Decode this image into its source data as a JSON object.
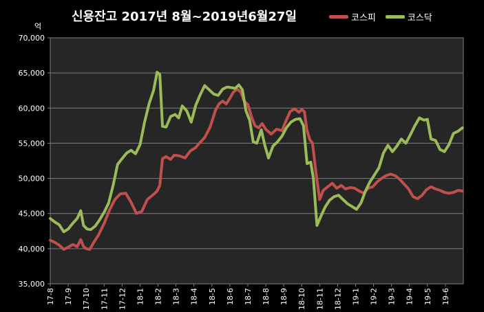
{
  "chart_data": {
    "type": "line",
    "title": "신용잔고 2017년 8월~2019년6월27일",
    "unit_label": "억",
    "ylim": [
      35000,
      70000
    ],
    "y_ticks": [
      35000,
      40000,
      45000,
      50000,
      55000,
      60000,
      65000,
      70000
    ],
    "y_tick_labels": [
      "35,000",
      "40,000",
      "45,000",
      "50,000",
      "55,000",
      "60,000",
      "65,000",
      "70,000"
    ],
    "x_labels": [
      "17-8",
      "17-9",
      "17-10",
      "17-11",
      "17-12",
      "18-1",
      "18-2",
      "18-3",
      "18-4",
      "18-5",
      "18-6",
      "18-7",
      "18-8",
      "18-9",
      "18-10",
      "18-11",
      "18-12",
      "19-1",
      "19-2",
      "19-3",
      "19-4",
      "19-5",
      "19-6"
    ],
    "x_range": [
      0,
      23
    ],
    "legend_position": "top-right",
    "grid": true,
    "series": [
      {
        "name": "코스피",
        "color": "#c0504d",
        "points": [
          [
            0,
            41200
          ],
          [
            0.25,
            40900
          ],
          [
            0.5,
            40500
          ],
          [
            0.75,
            39900
          ],
          [
            1,
            40200
          ],
          [
            1.25,
            40600
          ],
          [
            1.5,
            40300
          ],
          [
            1.7,
            41300
          ],
          [
            1.85,
            40300
          ],
          [
            2.0,
            40000
          ],
          [
            2.2,
            39900
          ],
          [
            2.4,
            40800
          ],
          [
            2.7,
            42000
          ],
          [
            3.0,
            43600
          ],
          [
            3.3,
            45500
          ],
          [
            3.6,
            47000
          ],
          [
            3.9,
            47800
          ],
          [
            4.2,
            47900
          ],
          [
            4.5,
            46600
          ],
          [
            4.8,
            45000
          ],
          [
            5.1,
            45300
          ],
          [
            5.4,
            47000
          ],
          [
            5.7,
            47600
          ],
          [
            5.95,
            48200
          ],
          [
            6.1,
            49000
          ],
          [
            6.25,
            52800
          ],
          [
            6.45,
            53100
          ],
          [
            6.7,
            52700
          ],
          [
            6.9,
            53300
          ],
          [
            7.2,
            53200
          ],
          [
            7.5,
            52900
          ],
          [
            7.8,
            53900
          ],
          [
            8.1,
            54400
          ],
          [
            8.3,
            55000
          ],
          [
            8.6,
            55800
          ],
          [
            8.9,
            57300
          ],
          [
            9.2,
            59700
          ],
          [
            9.4,
            60600
          ],
          [
            9.6,
            61000
          ],
          [
            9.8,
            60600
          ],
          [
            10.0,
            61400
          ],
          [
            10.2,
            62300
          ],
          [
            10.4,
            62700
          ],
          [
            10.6,
            62300
          ],
          [
            10.8,
            61000
          ],
          [
            11.0,
            60500
          ],
          [
            11.2,
            58800
          ],
          [
            11.4,
            57500
          ],
          [
            11.6,
            57200
          ],
          [
            11.8,
            57800
          ],
          [
            12.0,
            57000
          ],
          [
            12.3,
            56300
          ],
          [
            12.6,
            57000
          ],
          [
            12.9,
            56800
          ],
          [
            13.1,
            58000
          ],
          [
            13.35,
            59500
          ],
          [
            13.6,
            59900
          ],
          [
            13.85,
            59400
          ],
          [
            14.0,
            59800
          ],
          [
            14.15,
            59500
          ],
          [
            14.3,
            56800
          ],
          [
            14.45,
            55500
          ],
          [
            14.6,
            55000
          ],
          [
            14.8,
            50700
          ],
          [
            15.0,
            47000
          ],
          [
            15.2,
            48300
          ],
          [
            15.45,
            48800
          ],
          [
            15.7,
            49300
          ],
          [
            15.95,
            48600
          ],
          [
            16.2,
            49000
          ],
          [
            16.45,
            48500
          ],
          [
            16.7,
            48700
          ],
          [
            16.95,
            48600
          ],
          [
            17.2,
            48200
          ],
          [
            17.45,
            47900
          ],
          [
            17.7,
            48600
          ],
          [
            17.95,
            48800
          ],
          [
            18.2,
            49500
          ],
          [
            18.45,
            50000
          ],
          [
            18.7,
            50400
          ],
          [
            18.95,
            50600
          ],
          [
            19.2,
            50400
          ],
          [
            19.45,
            49900
          ],
          [
            19.7,
            49200
          ],
          [
            19.95,
            48500
          ],
          [
            20.2,
            47400
          ],
          [
            20.45,
            47100
          ],
          [
            20.7,
            47600
          ],
          [
            20.95,
            48400
          ],
          [
            21.2,
            48800
          ],
          [
            21.45,
            48500
          ],
          [
            21.7,
            48300
          ],
          [
            21.95,
            48000
          ],
          [
            22.2,
            47900
          ],
          [
            22.45,
            48000
          ],
          [
            22.7,
            48300
          ],
          [
            22.95,
            48200
          ]
        ]
      },
      {
        "name": "코스닥",
        "color": "#9bbb59",
        "points": [
          [
            0,
            44300
          ],
          [
            0.25,
            43800
          ],
          [
            0.5,
            43400
          ],
          [
            0.75,
            42400
          ],
          [
            1.0,
            42800
          ],
          [
            1.25,
            43600
          ],
          [
            1.5,
            44300
          ],
          [
            1.7,
            45400
          ],
          [
            1.85,
            43300
          ],
          [
            2.05,
            42800
          ],
          [
            2.25,
            42700
          ],
          [
            2.5,
            43200
          ],
          [
            2.75,
            44100
          ],
          [
            3.0,
            45200
          ],
          [
            3.25,
            46500
          ],
          [
            3.5,
            49000
          ],
          [
            3.75,
            52000
          ],
          [
            4.0,
            52800
          ],
          [
            4.25,
            53600
          ],
          [
            4.5,
            54000
          ],
          [
            4.75,
            53500
          ],
          [
            5.0,
            54800
          ],
          [
            5.25,
            58000
          ],
          [
            5.5,
            60600
          ],
          [
            5.75,
            62500
          ],
          [
            5.95,
            65100
          ],
          [
            6.1,
            64800
          ],
          [
            6.25,
            57400
          ],
          [
            6.45,
            57300
          ],
          [
            6.7,
            58800
          ],
          [
            6.95,
            59100
          ],
          [
            7.15,
            58600
          ],
          [
            7.35,
            60300
          ],
          [
            7.6,
            59600
          ],
          [
            7.85,
            58000
          ],
          [
            8.1,
            60400
          ],
          [
            8.35,
            61900
          ],
          [
            8.6,
            63200
          ],
          [
            8.85,
            62600
          ],
          [
            9.1,
            62000
          ],
          [
            9.35,
            61800
          ],
          [
            9.6,
            62700
          ],
          [
            9.85,
            63000
          ],
          [
            10.1,
            62900
          ],
          [
            10.3,
            62800
          ],
          [
            10.5,
            63300
          ],
          [
            10.7,
            62600
          ],
          [
            10.9,
            59600
          ],
          [
            11.1,
            58300
          ],
          [
            11.3,
            55200
          ],
          [
            11.5,
            55000
          ],
          [
            11.75,
            56900
          ],
          [
            11.95,
            54700
          ],
          [
            12.15,
            52900
          ],
          [
            12.4,
            54600
          ],
          [
            12.65,
            55200
          ],
          [
            12.9,
            56000
          ],
          [
            13.15,
            57200
          ],
          [
            13.4,
            58000
          ],
          [
            13.65,
            58400
          ],
          [
            13.9,
            58500
          ],
          [
            14.1,
            57500
          ],
          [
            14.3,
            52100
          ],
          [
            14.5,
            52300
          ],
          [
            14.65,
            50000
          ],
          [
            14.85,
            43300
          ],
          [
            15.05,
            44500
          ],
          [
            15.3,
            45900
          ],
          [
            15.55,
            46900
          ],
          [
            15.8,
            47400
          ],
          [
            16.05,
            47600
          ],
          [
            16.3,
            47000
          ],
          [
            16.55,
            46400
          ],
          [
            16.8,
            46000
          ],
          [
            17.05,
            45600
          ],
          [
            17.3,
            46500
          ],
          [
            17.55,
            48200
          ],
          [
            17.8,
            49500
          ],
          [
            18.05,
            50500
          ],
          [
            18.3,
            51500
          ],
          [
            18.55,
            53600
          ],
          [
            18.8,
            54700
          ],
          [
            19.05,
            53800
          ],
          [
            19.3,
            54600
          ],
          [
            19.55,
            55600
          ],
          [
            19.8,
            55000
          ],
          [
            20.05,
            56200
          ],
          [
            20.3,
            57500
          ],
          [
            20.55,
            58600
          ],
          [
            20.8,
            58300
          ],
          [
            21.0,
            58400
          ],
          [
            21.2,
            55600
          ],
          [
            21.45,
            55400
          ],
          [
            21.7,
            54100
          ],
          [
            21.95,
            53800
          ],
          [
            22.2,
            54800
          ],
          [
            22.45,
            56400
          ],
          [
            22.7,
            56700
          ],
          [
            22.95,
            57200
          ]
        ]
      }
    ]
  }
}
